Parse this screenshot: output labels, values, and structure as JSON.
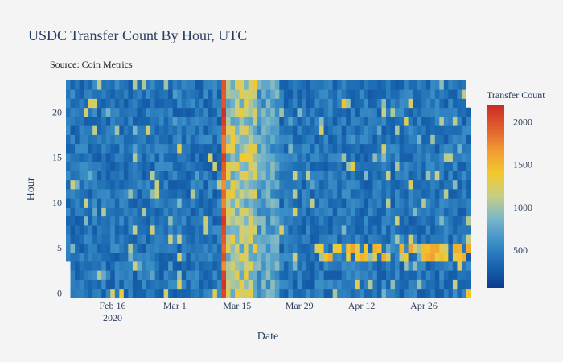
{
  "chart_data": {
    "type": "heatmap",
    "title": "USDC Transfer Count By Hour, UTC",
    "subtitle": "Source: Coin Metrics",
    "xlabel": "Date",
    "ylabel": "Hour",
    "x_range": [
      "2020-02-06",
      "2020-05-07"
    ],
    "y_range": [
      0,
      23
    ],
    "x_tick_labels": [
      "Feb 16\n2020",
      "Mar 1",
      "Mar 15",
      "Mar 29",
      "Apr 12",
      "Apr 26"
    ],
    "x_tick_dates": [
      "2020-02-16",
      "2020-03-01",
      "2020-03-15",
      "2020-03-29",
      "2020-04-12",
      "2020-04-26"
    ],
    "y_ticks": [
      0,
      5,
      10,
      15,
      20
    ],
    "colorbar": {
      "title": "Transfer Count",
      "range": [
        60,
        2200
      ],
      "ticks": [
        500,
        1000,
        1500,
        2000
      ],
      "colorscale": [
        "#0d3a8c",
        "#1866b0",
        "#3b8fc7",
        "#79b6c9",
        "#c6cf84",
        "#f2c92e",
        "#f19a32",
        "#e25c2c",
        "#c82b25"
      ]
    },
    "grid": false,
    "legend": "colorbar-right",
    "notable_values": [
      {
        "date": "2020-03-12",
        "hours": "all",
        "approx_value": 2100,
        "label": "peak"
      },
      {
        "date": "2020-03-13",
        "hours": "all",
        "approx_value": 1300
      },
      {
        "date": "2020-03-16",
        "hours": "all",
        "approx_value": 1250
      },
      {
        "date": "2020-04-01 to 2020-05-06",
        "hours": [
          4,
          5
        ],
        "approx_value": 1400
      }
    ]
  }
}
